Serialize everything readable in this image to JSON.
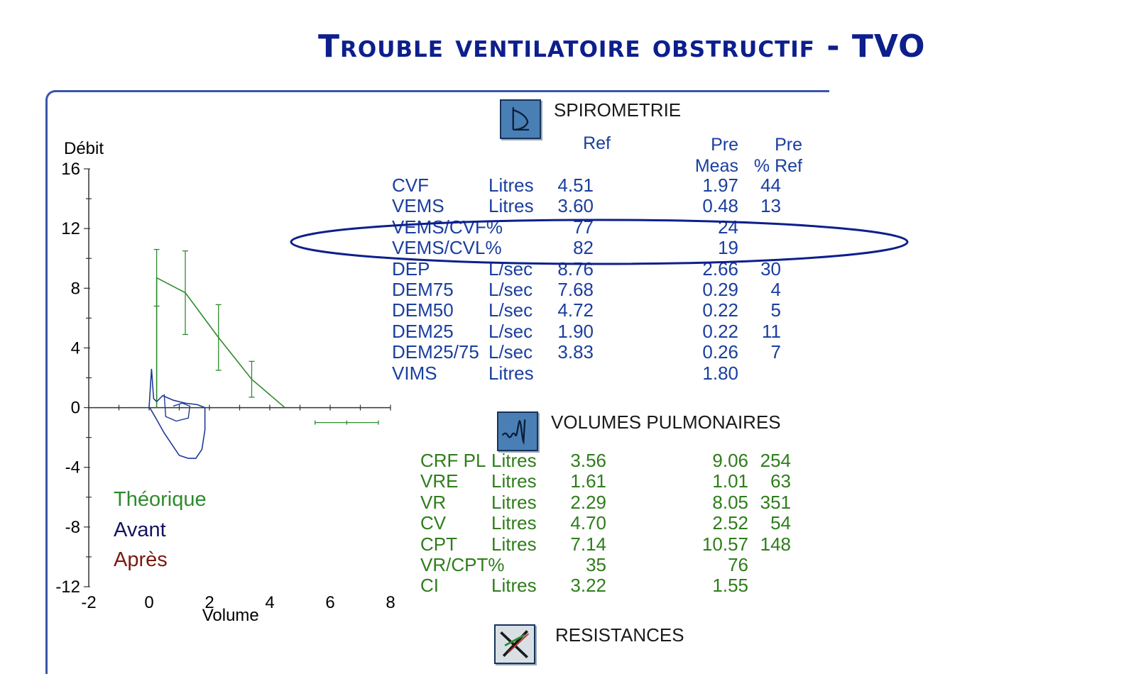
{
  "slide": {
    "title": "Trouble ventilatoire obstructif - TVO"
  },
  "colors": {
    "title": "#0d1f8c",
    "frame": "#3a55a8",
    "spiro_text": "#1a3ea0",
    "volumes_text": "#2e7d1a",
    "theorique": "#2e8b2e",
    "avant": "#1e3a9a",
    "apres": "#7a1a10"
  },
  "chart_data": {
    "type": "line",
    "ylabel": "Débit",
    "xlabel": "Volume",
    "xlim": [
      -2,
      8
    ],
    "ylim": [
      -12,
      16
    ],
    "xticks": [
      "-2",
      "0",
      "2",
      "4",
      "6",
      "8"
    ],
    "yticks": [
      "16",
      "12",
      "8",
      "4",
      "0",
      "-4",
      "-8",
      "-12"
    ],
    "series": [
      {
        "name": "Théorique",
        "color": "#2e8b2e",
        "x": [
          0.25,
          0.25,
          1.2,
          2.3,
          3.4,
          4.5
        ],
        "y": [
          0,
          8.7,
          7.7,
          4.7,
          1.9,
          0
        ],
        "error_bars": [
          {
            "x": 0.25,
            "low": 6.8,
            "high": 10.6
          },
          {
            "x": 1.2,
            "low": 4.9,
            "high": 10.5
          },
          {
            "x": 2.3,
            "low": 2.5,
            "high": 6.9
          },
          {
            "x": 3.4,
            "low": 0.7,
            "high": 3.1
          }
        ],
        "horizontal_bar": {
          "y": -1.0,
          "x_low": 5.5,
          "x_high": 7.6
        }
      },
      {
        "name": "Avant",
        "color": "#1e3a9a",
        "x": [
          0,
          0.08,
          0.15,
          0.25,
          0.45,
          0.8,
          1.2,
          1.6,
          1.85,
          1.85,
          1.75,
          1.55,
          1.3,
          1.0,
          0.8,
          0.5,
          0.25,
          0.05,
          0
        ],
        "y": [
          0,
          2.6,
          0.6,
          0.4,
          0.8,
          0.5,
          0.3,
          0.2,
          0,
          -1.5,
          -2.8,
          -3.4,
          -3.4,
          -3.2,
          -2.6,
          -1.7,
          -0.8,
          -0.1,
          0
        ]
      }
    ]
  },
  "legend": {
    "theorique": "Théorique",
    "avant": "Avant",
    "apres": "Après"
  },
  "spirometrie": {
    "title": "SPIROMETRIE",
    "headers": {
      "ref": "Ref",
      "pre": "Pre",
      "meas": "Meas",
      "pre2": "Pre",
      "pct_ref": "% Ref"
    },
    "rows": [
      {
        "name": "CVF",
        "unit": "Litres",
        "ref": "4.51",
        "meas": "1.97",
        "pct": "44"
      },
      {
        "name": "VEMS",
        "unit": "Litres",
        "ref": "3.60",
        "meas": "0.48",
        "pct": "13"
      },
      {
        "name": "VEMS/CVF%",
        "unit": "",
        "ref": "77",
        "meas": "24",
        "pct": ""
      },
      {
        "name": "VEMS/CVL%",
        "unit": "",
        "ref": "82",
        "meas": "19",
        "pct": ""
      },
      {
        "name": "DEP",
        "unit": "L/sec",
        "ref": "8.76",
        "meas": "2.66",
        "pct": "30"
      },
      {
        "name": "DEM75",
        "unit": "L/sec",
        "ref": "7.68",
        "meas": "0.29",
        "pct": "4"
      },
      {
        "name": "DEM50",
        "unit": "L/sec",
        "ref": "4.72",
        "meas": "0.22",
        "pct": "5"
      },
      {
        "name": "DEM25",
        "unit": "L/sec",
        "ref": "1.90",
        "meas": "0.22",
        "pct": "11"
      },
      {
        "name": "DEM25/75",
        "unit": "L/sec",
        "ref": "3.83",
        "meas": "0.26",
        "pct": "7"
      },
      {
        "name": "VIMS",
        "unit": "Litres",
        "ref": "",
        "meas": "1.80",
        "pct": ""
      }
    ]
  },
  "volumes": {
    "title": "VOLUMES PULMONAIRES",
    "rows": [
      {
        "name": "CRF PL",
        "unit": "Litres",
        "ref": "3.56",
        "meas": "9.06",
        "pct": "254"
      },
      {
        "name": "VRE",
        "unit": "Litres",
        "ref": "1.61",
        "meas": "1.01",
        "pct": "63"
      },
      {
        "name": "VR",
        "unit": "Litres",
        "ref": "2.29",
        "meas": "8.05",
        "pct": "351"
      },
      {
        "name": "CV",
        "unit": "Litres",
        "ref": "4.70",
        "meas": "2.52",
        "pct": "54"
      },
      {
        "name": "CPT",
        "unit": "Litres",
        "ref": "7.14",
        "meas": "10.57",
        "pct": "148"
      },
      {
        "name": "VR/CPT%",
        "unit": "",
        "ref": "35",
        "meas": "76",
        "pct": ""
      },
      {
        "name": "CI",
        "unit": "Litres",
        "ref": "3.22",
        "meas": "1.55",
        "pct": ""
      }
    ]
  },
  "resistances": {
    "title": "RESISTANCES"
  }
}
